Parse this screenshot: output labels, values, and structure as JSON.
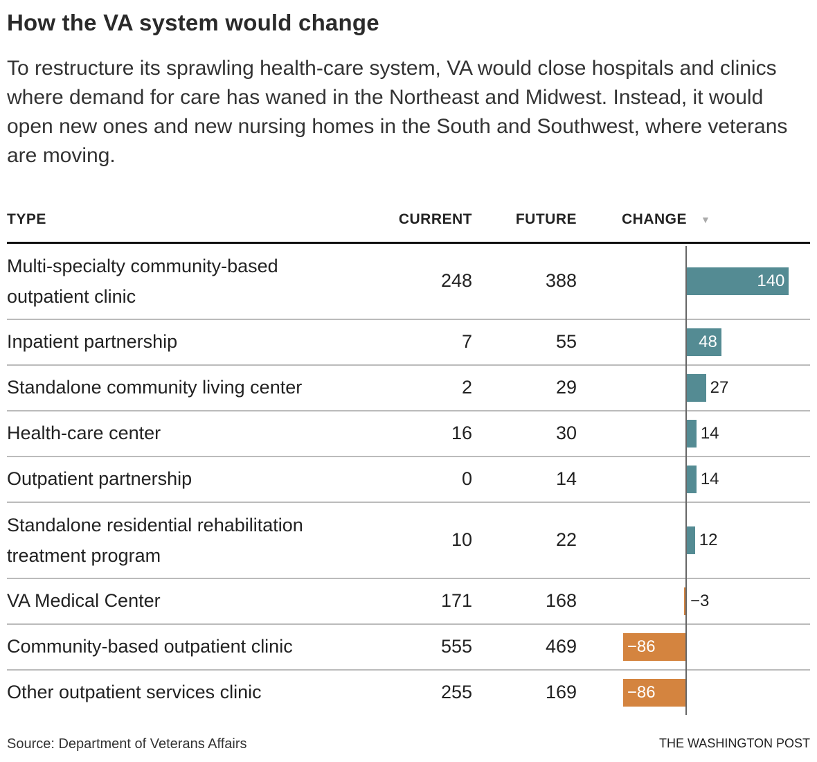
{
  "title": "How the VA system would change",
  "subtitle": "To restructure its sprawling health-care system, VA would close hospitals and clinics where demand for care has waned in the Northeast and Midwest. Instead, it would open new ones and new nursing homes in the South and Southwest, where veterans are moving.",
  "headers": {
    "type": "TYPE",
    "current": "CURRENT",
    "future": "FUTURE",
    "change": "CHANGE",
    "sort_icon": "triangle-down-icon"
  },
  "colors": {
    "positive": "#548b93",
    "negative": "#d4843f"
  },
  "chart_data": {
    "type": "table",
    "columns": [
      "TYPE",
      "CURRENT",
      "FUTURE",
      "CHANGE"
    ],
    "rows": [
      {
        "type": "Multi-specialty community-based outpatient clinic",
        "current": 248,
        "future": 388,
        "change": 140,
        "change_label": "140"
      },
      {
        "type": "Inpatient partnership",
        "current": 7,
        "future": 55,
        "change": 48,
        "change_label": "48"
      },
      {
        "type": "Standalone community living center",
        "current": 2,
        "future": 29,
        "change": 27,
        "change_label": "27"
      },
      {
        "type": "Health-care center",
        "current": 16,
        "future": 30,
        "change": 14,
        "change_label": "14"
      },
      {
        "type": "Outpatient partnership",
        "current": 0,
        "future": 14,
        "change": 14,
        "change_label": "14"
      },
      {
        "type": "Standalone residential rehabilitation treatment program",
        "current": 10,
        "future": 22,
        "change": 12,
        "change_label": "12"
      },
      {
        "type": "VA Medical Center",
        "current": 171,
        "future": 168,
        "change": -3,
        "change_label": "−3"
      },
      {
        "type": "Community-based outpatient clinic",
        "current": 555,
        "future": 469,
        "change": -86,
        "change_label": "−86"
      },
      {
        "type": "Other outpatient services clinic",
        "current": 255,
        "future": 169,
        "change": -86,
        "change_label": "−86"
      }
    ]
  },
  "source": "Source: Department of Veterans Affairs",
  "credit": "THE WASHINGTON POST"
}
